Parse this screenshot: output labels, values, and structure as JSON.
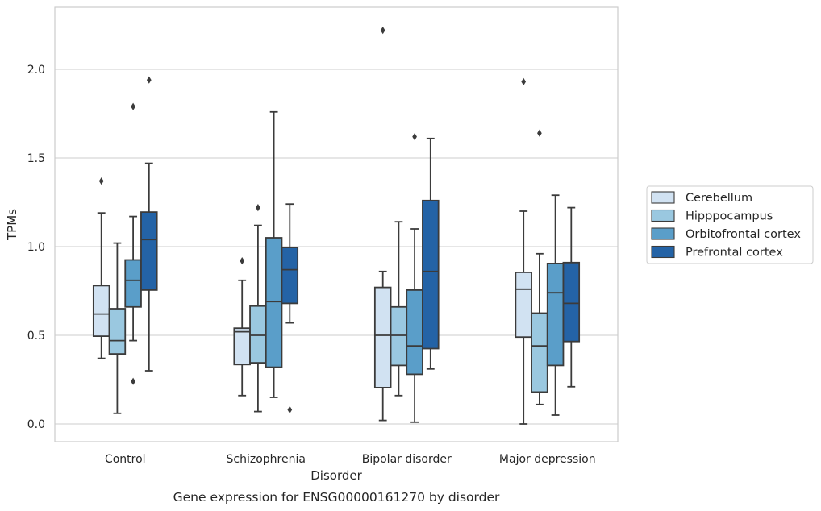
{
  "chart_data": {
    "type": "box",
    "title": "",
    "caption": "Gene expression for ENSG00000161270 by disorder",
    "xlabel": "Disorder",
    "ylabel": "TPMs",
    "ylim": [
      -0.1,
      2.35
    ],
    "yticks": [
      0.0,
      0.5,
      1.0,
      1.5,
      2.0
    ],
    "ytick_labels": [
      "0.0",
      "0.5",
      "1.0",
      "1.5",
      "2.0"
    ],
    "grid": "horizontal",
    "legend_position": "right",
    "categories": [
      "Control",
      "Schizophrenia",
      "Bipolar disorder",
      "Major depression"
    ],
    "series": [
      {
        "name": "Cerebellum",
        "color": "#d1e2f2",
        "boxes": [
          {
            "whisker_low": 0.37,
            "q1": 0.495,
            "median": 0.62,
            "q3": 0.78,
            "whisker_high": 1.19,
            "outliers": [
              1.37
            ]
          },
          {
            "whisker_low": 0.16,
            "q1": 0.335,
            "median": 0.52,
            "q3": 0.54,
            "whisker_high": 0.81,
            "outliers": [
              0.92
            ]
          },
          {
            "whisker_low": 0.02,
            "q1": 0.205,
            "median": 0.5,
            "q3": 0.77,
            "whisker_high": 0.86,
            "outliers": [
              2.22
            ]
          },
          {
            "whisker_low": 0.0,
            "q1": 0.49,
            "median": 0.76,
            "q3": 0.855,
            "whisker_high": 1.2,
            "outliers": [
              1.93
            ]
          }
        ]
      },
      {
        "name": "Hipppocampus",
        "color": "#9ac8e0",
        "boxes": [
          {
            "whisker_low": 0.06,
            "q1": 0.395,
            "median": 0.47,
            "q3": 0.65,
            "whisker_high": 1.02,
            "outliers": []
          },
          {
            "whisker_low": 0.07,
            "q1": 0.345,
            "median": 0.5,
            "q3": 0.665,
            "whisker_high": 1.12,
            "outliers": [
              1.22
            ]
          },
          {
            "whisker_low": 0.16,
            "q1": 0.33,
            "median": 0.5,
            "q3": 0.66,
            "whisker_high": 1.14,
            "outliers": []
          },
          {
            "whisker_low": 0.11,
            "q1": 0.18,
            "median": 0.44,
            "q3": 0.625,
            "whisker_high": 0.96,
            "outliers": [
              1.64
            ]
          }
        ]
      },
      {
        "name": "Orbitofrontal cortex",
        "color": "#5a9ec9",
        "boxes": [
          {
            "whisker_low": 0.47,
            "q1": 0.66,
            "median": 0.81,
            "q3": 0.925,
            "whisker_high": 1.17,
            "outliers": [
              1.79,
              0.24
            ]
          },
          {
            "whisker_low": 0.15,
            "q1": 0.32,
            "median": 0.69,
            "q3": 1.05,
            "whisker_high": 1.76,
            "outliers": []
          },
          {
            "whisker_low": 0.01,
            "q1": 0.28,
            "median": 0.44,
            "q3": 0.755,
            "whisker_high": 1.1,
            "outliers": [
              1.62
            ]
          },
          {
            "whisker_low": 0.05,
            "q1": 0.33,
            "median": 0.74,
            "q3": 0.905,
            "whisker_high": 1.29,
            "outliers": []
          }
        ]
      },
      {
        "name": "Prefrontal cortex",
        "color": "#2463a6",
        "boxes": [
          {
            "whisker_low": 0.3,
            "q1": 0.755,
            "median": 1.04,
            "q3": 1.195,
            "whisker_high": 1.47,
            "outliers": [
              1.94
            ]
          },
          {
            "whisker_low": 0.57,
            "q1": 0.68,
            "median": 0.87,
            "q3": 0.995,
            "whisker_high": 1.24,
            "outliers": [
              0.08
            ]
          },
          {
            "whisker_low": 0.31,
            "q1": 0.425,
            "median": 0.86,
            "q3": 1.26,
            "whisker_high": 1.61,
            "outliers": []
          },
          {
            "whisker_low": 0.21,
            "q1": 0.465,
            "median": 0.68,
            "q3": 0.91,
            "whisker_high": 1.22,
            "outliers": []
          }
        ]
      }
    ]
  }
}
